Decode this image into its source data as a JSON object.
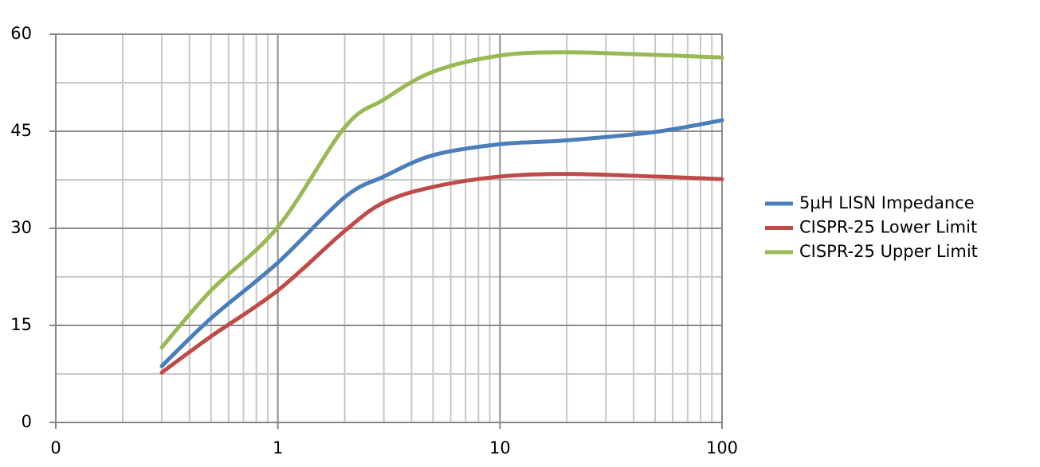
{
  "chart_data": {
    "type": "line",
    "x": [
      0.3,
      0.5,
      1,
      2,
      3,
      5,
      10,
      20,
      50,
      100
    ],
    "series": [
      {
        "name": "5µH LISN Impedance",
        "color": "#4a7ebb",
        "values": [
          8.7,
          16.1,
          24.7,
          34.8,
          38.0,
          41.3,
          43.0,
          43.6,
          44.9,
          46.7
        ]
      },
      {
        "name": "CISPR-25 Lower Limit",
        "color": "#be4b48",
        "values": [
          7.7,
          13.3,
          20.4,
          29.6,
          34.0,
          36.4,
          38.0,
          38.4,
          38.0,
          37.6
        ]
      },
      {
        "name": "CISPR-25 Upper Limit",
        "color": "#98b954",
        "values": [
          11.6,
          20.4,
          30.2,
          45.6,
          49.9,
          54.2,
          56.7,
          57.2,
          56.8,
          56.4
        ]
      }
    ],
    "xlim": [
      0.1,
      100
    ],
    "xticks": [
      {
        "value": 0.1,
        "label": "0"
      },
      1,
      10,
      100
    ],
    "xscale": "log",
    "ylim": [
      0,
      60
    ],
    "yticks": [
      0,
      15,
      30,
      45,
      60
    ],
    "grid": true,
    "legend": "right"
  }
}
